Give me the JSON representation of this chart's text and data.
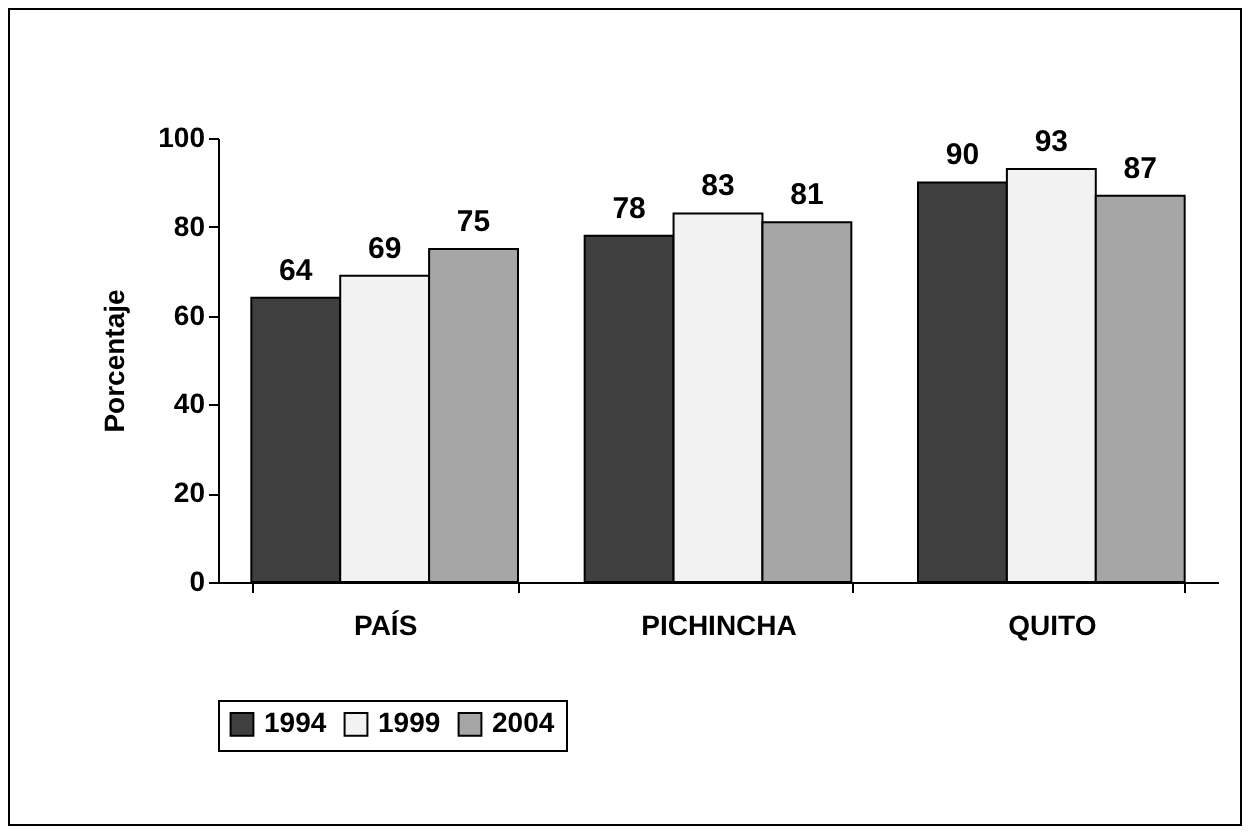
{
  "chart_data": {
    "type": "bar",
    "ylabel": "Porcentaje",
    "categories": [
      "PAÍS",
      "PICHINCHA",
      "QUITO"
    ],
    "series": [
      {
        "name": "1994",
        "color": "#3f3f3f",
        "values": [
          64,
          78,
          90
        ]
      },
      {
        "name": "1999",
        "color": "#f2f2f2",
        "values": [
          69,
          83,
          93
        ]
      },
      {
        "name": "2004",
        "color": "#a6a6a6",
        "values": [
          75,
          81,
          87
        ]
      }
    ],
    "ylim": [
      0,
      100
    ],
    "yticks": [
      0,
      20,
      40,
      60,
      80,
      100
    ],
    "grid": false,
    "legend": "bottom",
    "data_labels": true
  }
}
